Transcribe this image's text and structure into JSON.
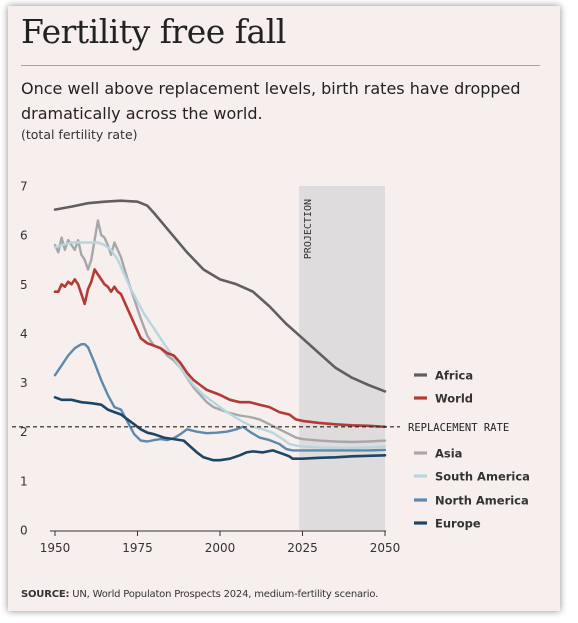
{
  "header": {
    "title": "Fertility free fall",
    "subtitle": "Once well above replacement levels, birth rates have dropped dramatically across the world.",
    "unit_note": "(total fertility rate)"
  },
  "footer": {
    "source_label": "SOURCE:",
    "source_text": " UN, World Populaton Prospects 2024, medium-fertility scenario."
  },
  "chart_data": {
    "type": "line",
    "title": "Fertility free fall",
    "ylabel": "total fertility rate",
    "xlim": [
      1950,
      2050
    ],
    "ylim": [
      0,
      7
    ],
    "x_ticks": [
      "1950",
      "1975",
      "2000",
      "2025",
      "2050"
    ],
    "y_ticks": [
      "0",
      "1",
      "2",
      "3",
      "4",
      "5",
      "6",
      "7"
    ],
    "projection": {
      "label": "PROJECTION",
      "from": 2024,
      "to": 2050,
      "color": "#dedcdc"
    },
    "reference_line": {
      "label": "REPLACEMENT RATE",
      "value": 2.1
    },
    "series": [
      {
        "name": "Africa",
        "color": "#5f5f62",
        "points": [
          [
            1950,
            6.52
          ],
          [
            1955,
            6.58
          ],
          [
            1960,
            6.65
          ],
          [
            1965,
            6.68
          ],
          [
            1970,
            6.7
          ],
          [
            1975,
            6.68
          ],
          [
            1978,
            6.6
          ],
          [
            1980,
            6.45
          ],
          [
            1985,
            6.05
          ],
          [
            1990,
            5.65
          ],
          [
            1995,
            5.3
          ],
          [
            2000,
            5.1
          ],
          [
            2005,
            5.0
          ],
          [
            2010,
            4.85
          ],
          [
            2015,
            4.55
          ],
          [
            2020,
            4.2
          ],
          [
            2025,
            3.9
          ],
          [
            2030,
            3.6
          ],
          [
            2035,
            3.3
          ],
          [
            2040,
            3.1
          ],
          [
            2045,
            2.95
          ],
          [
            2050,
            2.82
          ]
        ]
      },
      {
        "name": "World",
        "color": "#b43a36",
        "points": [
          [
            1950,
            4.85
          ],
          [
            1951,
            4.85
          ],
          [
            1952,
            5.0
          ],
          [
            1953,
            4.95
          ],
          [
            1954,
            5.05
          ],
          [
            1955,
            5.0
          ],
          [
            1956,
            5.1
          ],
          [
            1957,
            5.0
          ],
          [
            1958,
            4.8
          ],
          [
            1959,
            4.6
          ],
          [
            1960,
            4.9
          ],
          [
            1961,
            5.05
          ],
          [
            1962,
            5.3
          ],
          [
            1963,
            5.2
          ],
          [
            1964,
            5.1
          ],
          [
            1965,
            5.0
          ],
          [
            1966,
            4.95
          ],
          [
            1967,
            4.85
          ],
          [
            1968,
            4.95
          ],
          [
            1969,
            4.85
          ],
          [
            1970,
            4.8
          ],
          [
            1972,
            4.5
          ],
          [
            1974,
            4.2
          ],
          [
            1976,
            3.9
          ],
          [
            1978,
            3.8
          ],
          [
            1980,
            3.75
          ],
          [
            1982,
            3.7
          ],
          [
            1984,
            3.6
          ],
          [
            1986,
            3.55
          ],
          [
            1988,
            3.4
          ],
          [
            1990,
            3.2
          ],
          [
            1992,
            3.05
          ],
          [
            1994,
            2.95
          ],
          [
            1996,
            2.85
          ],
          [
            1998,
            2.8
          ],
          [
            2000,
            2.75
          ],
          [
            2003,
            2.65
          ],
          [
            2006,
            2.6
          ],
          [
            2009,
            2.6
          ],
          [
            2012,
            2.55
          ],
          [
            2015,
            2.5
          ],
          [
            2018,
            2.4
          ],
          [
            2021,
            2.35
          ],
          [
            2023,
            2.25
          ],
          [
            2025,
            2.22
          ],
          [
            2030,
            2.18
          ],
          [
            2035,
            2.15
          ],
          [
            2040,
            2.13
          ],
          [
            2045,
            2.12
          ],
          [
            2050,
            2.1
          ]
        ]
      },
      {
        "name": "Asia",
        "color": "#a7a7aa",
        "points": [
          [
            1950,
            5.8
          ],
          [
            1951,
            5.65
          ],
          [
            1952,
            5.95
          ],
          [
            1953,
            5.7
          ],
          [
            1954,
            5.9
          ],
          [
            1955,
            5.8
          ],
          [
            1956,
            5.7
          ],
          [
            1957,
            5.9
          ],
          [
            1958,
            5.6
          ],
          [
            1959,
            5.5
          ],
          [
            1960,
            5.3
          ],
          [
            1961,
            5.5
          ],
          [
            1962,
            5.9
          ],
          [
            1963,
            6.3
          ],
          [
            1964,
            6.0
          ],
          [
            1965,
            5.95
          ],
          [
            1966,
            5.8
          ],
          [
            1967,
            5.6
          ],
          [
            1968,
            5.85
          ],
          [
            1969,
            5.7
          ],
          [
            1970,
            5.55
          ],
          [
            1972,
            5.1
          ],
          [
            1974,
            4.7
          ],
          [
            1976,
            4.3
          ],
          [
            1978,
            3.95
          ],
          [
            1980,
            3.75
          ],
          [
            1982,
            3.7
          ],
          [
            1984,
            3.55
          ],
          [
            1986,
            3.45
          ],
          [
            1988,
            3.3
          ],
          [
            1990,
            3.1
          ],
          [
            1992,
            2.9
          ],
          [
            1994,
            2.75
          ],
          [
            1996,
            2.6
          ],
          [
            1998,
            2.5
          ],
          [
            2000,
            2.45
          ],
          [
            2003,
            2.38
          ],
          [
            2006,
            2.33
          ],
          [
            2009,
            2.3
          ],
          [
            2012,
            2.25
          ],
          [
            2015,
            2.15
          ],
          [
            2018,
            2.05
          ],
          [
            2021,
            1.95
          ],
          [
            2023,
            1.88
          ],
          [
            2025,
            1.85
          ],
          [
            2030,
            1.82
          ],
          [
            2035,
            1.8
          ],
          [
            2040,
            1.79
          ],
          [
            2045,
            1.8
          ],
          [
            2050,
            1.82
          ]
        ]
      },
      {
        "name": "South America",
        "color": "#b7d6df",
        "points": [
          [
            1950,
            5.75
          ],
          [
            1955,
            5.85
          ],
          [
            1960,
            5.85
          ],
          [
            1963,
            5.85
          ],
          [
            1965,
            5.8
          ],
          [
            1967,
            5.7
          ],
          [
            1969,
            5.5
          ],
          [
            1971,
            5.2
          ],
          [
            1973,
            4.9
          ],
          [
            1975,
            4.65
          ],
          [
            1977,
            4.4
          ],
          [
            1980,
            4.1
          ],
          [
            1983,
            3.8
          ],
          [
            1986,
            3.5
          ],
          [
            1989,
            3.2
          ],
          [
            1992,
            2.95
          ],
          [
            1995,
            2.75
          ],
          [
            1998,
            2.6
          ],
          [
            2001,
            2.45
          ],
          [
            2004,
            2.32
          ],
          [
            2007,
            2.2
          ],
          [
            2010,
            2.1
          ],
          [
            2013,
            2.05
          ],
          [
            2016,
            1.98
          ],
          [
            2019,
            1.85
          ],
          [
            2021,
            1.75
          ],
          [
            2023,
            1.72
          ],
          [
            2025,
            1.7
          ],
          [
            2030,
            1.68
          ],
          [
            2035,
            1.67
          ],
          [
            2040,
            1.67
          ],
          [
            2045,
            1.68
          ],
          [
            2050,
            1.7
          ]
        ]
      },
      {
        "name": "North America",
        "color": "#5e89ad",
        "points": [
          [
            1950,
            3.15
          ],
          [
            1952,
            3.35
          ],
          [
            1954,
            3.55
          ],
          [
            1956,
            3.7
          ],
          [
            1958,
            3.78
          ],
          [
            1959,
            3.78
          ],
          [
            1960,
            3.72
          ],
          [
            1962,
            3.4
          ],
          [
            1964,
            3.05
          ],
          [
            1966,
            2.75
          ],
          [
            1968,
            2.5
          ],
          [
            1970,
            2.45
          ],
          [
            1972,
            2.2
          ],
          [
            1974,
            1.95
          ],
          [
            1976,
            1.82
          ],
          [
            1978,
            1.8
          ],
          [
            1980,
            1.83
          ],
          [
            1982,
            1.85
          ],
          [
            1984,
            1.83
          ],
          [
            1986,
            1.87
          ],
          [
            1988,
            1.95
          ],
          [
            1990,
            2.05
          ],
          [
            1993,
            2.0
          ],
          [
            1996,
            1.97
          ],
          [
            1999,
            1.98
          ],
          [
            2002,
            2.0
          ],
          [
            2005,
            2.05
          ],
          [
            2007,
            2.1
          ],
          [
            2009,
            2.0
          ],
          [
            2012,
            1.88
          ],
          [
            2015,
            1.83
          ],
          [
            2018,
            1.75
          ],
          [
            2020,
            1.65
          ],
          [
            2022,
            1.62
          ],
          [
            2025,
            1.62
          ],
          [
            2030,
            1.62
          ],
          [
            2035,
            1.62
          ],
          [
            2040,
            1.62
          ],
          [
            2045,
            1.62
          ],
          [
            2050,
            1.63
          ]
        ]
      },
      {
        "name": "Europe",
        "color": "#1d4566",
        "points": [
          [
            1950,
            2.7
          ],
          [
            1952,
            2.65
          ],
          [
            1955,
            2.65
          ],
          [
            1958,
            2.6
          ],
          [
            1961,
            2.58
          ],
          [
            1964,
            2.55
          ],
          [
            1966,
            2.45
          ],
          [
            1968,
            2.4
          ],
          [
            1970,
            2.35
          ],
          [
            1972,
            2.25
          ],
          [
            1974,
            2.15
          ],
          [
            1976,
            2.05
          ],
          [
            1978,
            1.98
          ],
          [
            1980,
            1.95
          ],
          [
            1983,
            1.88
          ],
          [
            1986,
            1.85
          ],
          [
            1989,
            1.82
          ],
          [
            1991,
            1.7
          ],
          [
            1993,
            1.58
          ],
          [
            1995,
            1.48
          ],
          [
            1998,
            1.42
          ],
          [
            2000,
            1.42
          ],
          [
            2003,
            1.45
          ],
          [
            2006,
            1.52
          ],
          [
            2008,
            1.58
          ],
          [
            2010,
            1.6
          ],
          [
            2013,
            1.58
          ],
          [
            2016,
            1.62
          ],
          [
            2019,
            1.55
          ],
          [
            2021,
            1.5
          ],
          [
            2022,
            1.45
          ],
          [
            2025,
            1.45
          ],
          [
            2030,
            1.47
          ],
          [
            2035,
            1.48
          ],
          [
            2040,
            1.5
          ],
          [
            2045,
            1.51
          ],
          [
            2050,
            1.52
          ]
        ]
      }
    ]
  }
}
